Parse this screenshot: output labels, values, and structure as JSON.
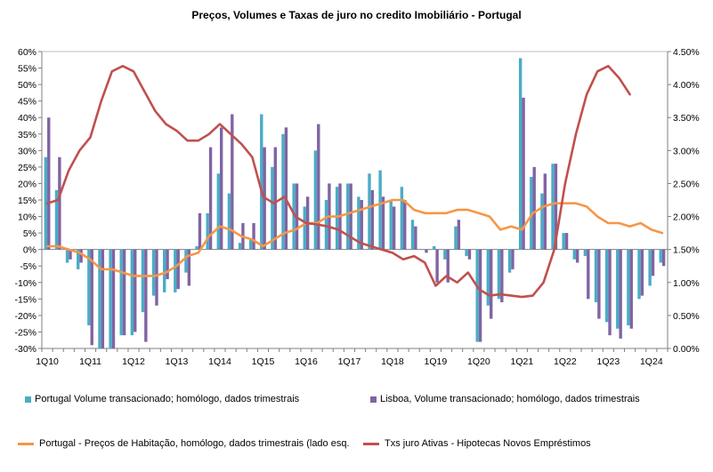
{
  "chart_data": {
    "type": "bar",
    "title": "Preços, Volumes e Taxas de juro no credito Imobiliário  -  Portugal",
    "x_labels": [
      "1Q10",
      "1Q11",
      "1Q12",
      "1Q13",
      "1Q14",
      "1Q15",
      "1Q16",
      "1Q17",
      "1Q18",
      "1Q19",
      "1Q20",
      "1Q21",
      "1Q22",
      "1Q23",
      "1Q24"
    ],
    "quarters_count": 58,
    "left_axis": {
      "ylim": [
        -30,
        60
      ],
      "ticks": [
        60,
        55,
        50,
        45,
        40,
        35,
        30,
        25,
        20,
        15,
        10,
        5,
        0,
        -5,
        -10,
        -15,
        -20,
        -25,
        -30
      ],
      "tick_labels": [
        "60%",
        "55%",
        "50%",
        "45%",
        "40%",
        "35%",
        "30%",
        "25%",
        "20%",
        "15%",
        "10%",
        "5%",
        "0%",
        "-5%",
        "-10%",
        "-15%",
        "-20%",
        "-25%",
        "-30%"
      ]
    },
    "right_axis": {
      "ylim": [
        0,
        4.5
      ],
      "ticks": [
        4.5,
        4.0,
        3.5,
        3.0,
        2.5,
        2.0,
        1.5,
        1.0,
        0.5,
        0.0
      ],
      "tick_labels": [
        "4.50%",
        "4.00%",
        "3.50%",
        "3.00%",
        "2.50%",
        "2.00%",
        "1.50%",
        "1.00%",
        "0.50%",
        "0.00%"
      ]
    },
    "series": [
      {
        "name": "Portugal Volume transacionado; homólogo, dados trimestrais",
        "kind": "bar",
        "axis": "left",
        "color": "#4BACC6",
        "values": [
          28,
          18,
          -4,
          -6,
          -23,
          -30,
          -30,
          -26,
          -26,
          -19,
          -14,
          -13,
          -13,
          -7,
          1,
          11,
          23,
          17,
          2,
          3,
          41,
          25,
          35,
          20,
          13,
          30,
          15,
          19,
          20,
          16,
          23,
          24,
          15,
          19,
          9,
          0,
          1,
          -3,
          7,
          -2,
          -28,
          -17,
          -15,
          -7,
          58,
          22,
          17,
          26,
          5,
          -3,
          -2,
          -16,
          -22,
          -24,
          -23,
          -15,
          -11,
          -4
        ],
        "note": "percent, left axis"
      },
      {
        "name": "Lisboa, Volume transacionado; homólogo, dados trimestrais",
        "kind": "bar",
        "axis": "left",
        "color": "#8064A2",
        "values": [
          40,
          28,
          -3,
          -4,
          -29,
          -30,
          -30,
          -26,
          -25,
          -28,
          -17,
          -9,
          -12,
          -11,
          11,
          31,
          37,
          41,
          8,
          8,
          31,
          31,
          37,
          20,
          16,
          38,
          20,
          20,
          20,
          15,
          18,
          16,
          13,
          15,
          7,
          -1,
          -10,
          -10,
          9,
          -3,
          -28,
          -21,
          -16,
          -6,
          46,
          25,
          23,
          26,
          5,
          -4,
          -15,
          -21,
          -26,
          -27,
          -24,
          -14,
          -8,
          -5
        ],
        "note": "percent, left axis"
      },
      {
        "name": "Portugal - Preços de Habitação, homólogo, dados trimestrais (lado esq.",
        "kind": "line",
        "axis": "left",
        "color": "#F79646",
        "values": [
          1,
          1,
          0,
          -1,
          -3,
          -6,
          -6,
          -7,
          -8,
          -8,
          -8,
          -7,
          -5,
          -2,
          -1,
          4,
          7,
          6,
          4,
          3,
          1,
          3,
          5,
          6,
          8,
          8,
          10,
          10,
          11,
          12,
          13,
          14,
          15,
          15,
          12,
          11,
          11,
          11,
          12,
          12,
          11,
          10,
          6,
          7,
          6,
          11,
          13,
          14,
          14,
          14,
          13,
          10,
          8,
          8,
          7,
          8,
          6,
          5
        ],
        "note": "percent, left axis"
      },
      {
        "name": "Txs juro Ativas - Hipotecas Novos Empréstimos",
        "kind": "line",
        "axis": "right",
        "color": "#C0504D",
        "values": [
          2.2,
          2.25,
          2.7,
          3.0,
          3.2,
          3.75,
          4.2,
          4.28,
          4.2,
          3.9,
          3.6,
          3.4,
          3.3,
          3.15,
          3.15,
          3.25,
          3.4,
          3.25,
          3.1,
          2.9,
          2.3,
          2.2,
          2.3,
          2.0,
          1.9,
          1.88,
          1.85,
          1.8,
          1.7,
          1.6,
          1.55,
          1.5,
          1.45,
          1.35,
          1.4,
          1.3,
          0.95,
          1.1,
          1.0,
          1.15,
          0.9,
          0.8,
          0.82,
          0.8,
          0.78,
          0.8,
          1.0,
          1.5,
          2.5,
          3.25,
          3.85,
          4.2,
          4.28,
          4.1,
          3.85
        ],
        "note": "percent, right axis"
      }
    ],
    "legend": [
      {
        "label": "Portugal Volume transacionado; homólogo, dados trimestrais",
        "color": "#4BACC6",
        "shape": "square"
      },
      {
        "label": "Lisboa, Volume transacionado; homólogo, dados trimestrais",
        "color": "#8064A2",
        "shape": "square"
      },
      {
        "label": "Portugal - Preços de Habitação, homólogo, dados trimestrais (lado esq.",
        "color": "#F79646",
        "shape": "line"
      },
      {
        "label": "Txs juro Ativas - Hipotecas Novos Empréstimos",
        "color": "#C0504D",
        "shape": "line"
      }
    ]
  }
}
